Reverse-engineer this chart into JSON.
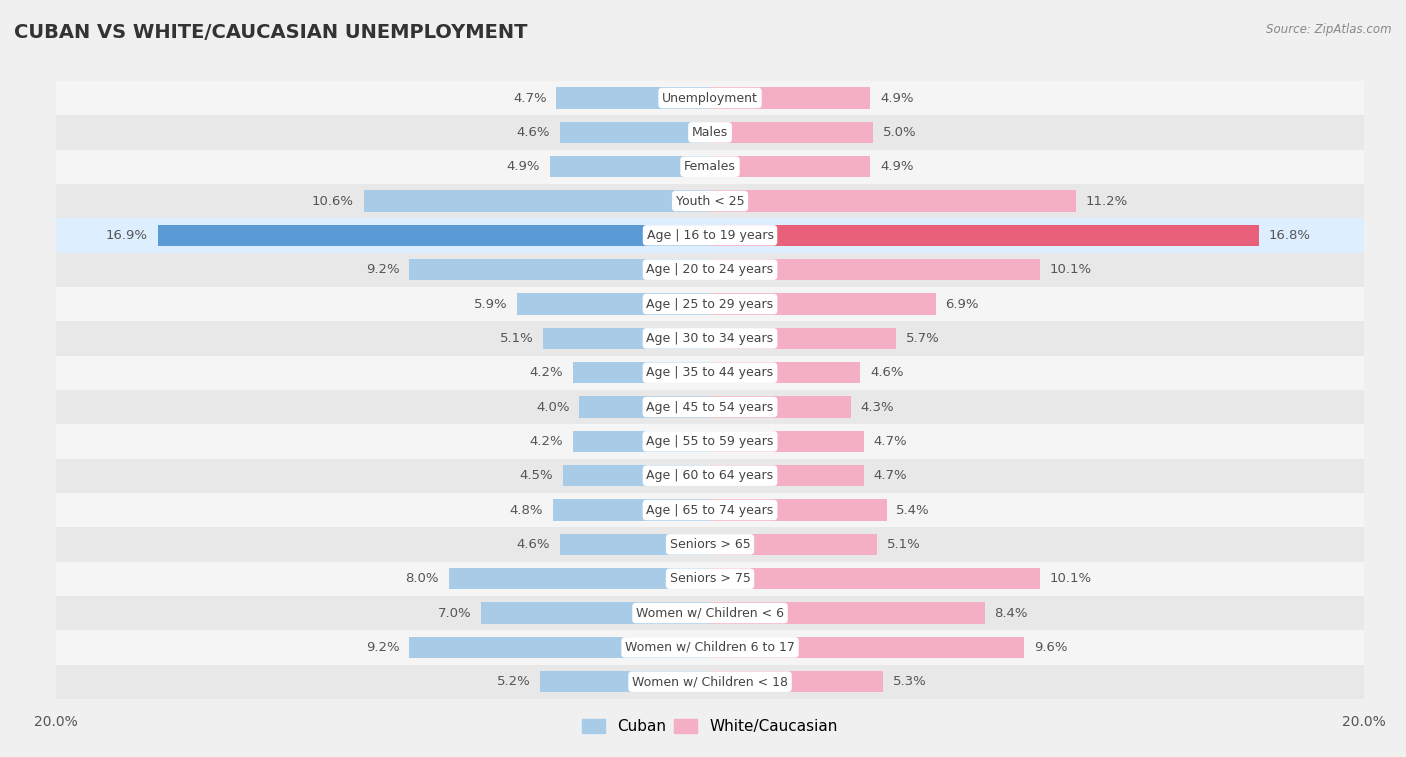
{
  "title": "CUBAN VS WHITE/CAUCASIAN UNEMPLOYMENT",
  "source": "Source: ZipAtlas.com",
  "categories": [
    "Unemployment",
    "Males",
    "Females",
    "Youth < 25",
    "Age | 16 to 19 years",
    "Age | 20 to 24 years",
    "Age | 25 to 29 years",
    "Age | 30 to 34 years",
    "Age | 35 to 44 years",
    "Age | 45 to 54 years",
    "Age | 55 to 59 years",
    "Age | 60 to 64 years",
    "Age | 65 to 74 years",
    "Seniors > 65",
    "Seniors > 75",
    "Women w/ Children < 6",
    "Women w/ Children 6 to 17",
    "Women w/ Children < 18"
  ],
  "cuban": [
    4.7,
    4.6,
    4.9,
    10.6,
    16.9,
    9.2,
    5.9,
    5.1,
    4.2,
    4.0,
    4.2,
    4.5,
    4.8,
    4.6,
    8.0,
    7.0,
    9.2,
    5.2
  ],
  "white": [
    4.9,
    5.0,
    4.9,
    11.2,
    16.8,
    10.1,
    6.9,
    5.7,
    4.6,
    4.3,
    4.7,
    4.7,
    5.4,
    5.1,
    10.1,
    8.4,
    9.6,
    5.3
  ],
  "cuban_color": "#a8cce8",
  "white_color": "#f4afc4",
  "cuban_highlight_color": "#5b9bd5",
  "white_highlight_color": "#e8607a",
  "highlight_row": 4,
  "row_colors": [
    "#f5f5f5",
    "#e8e8e8"
  ],
  "highlight_row_color": "#ddeeff",
  "bg_color": "#f0f0f0",
  "axis_limit": 20.0,
  "label_fontsize": 9.5,
  "category_fontsize": 9,
  "title_fontsize": 14,
  "legend_cuban": "Cuban",
  "legend_white": "White/Caucasian"
}
